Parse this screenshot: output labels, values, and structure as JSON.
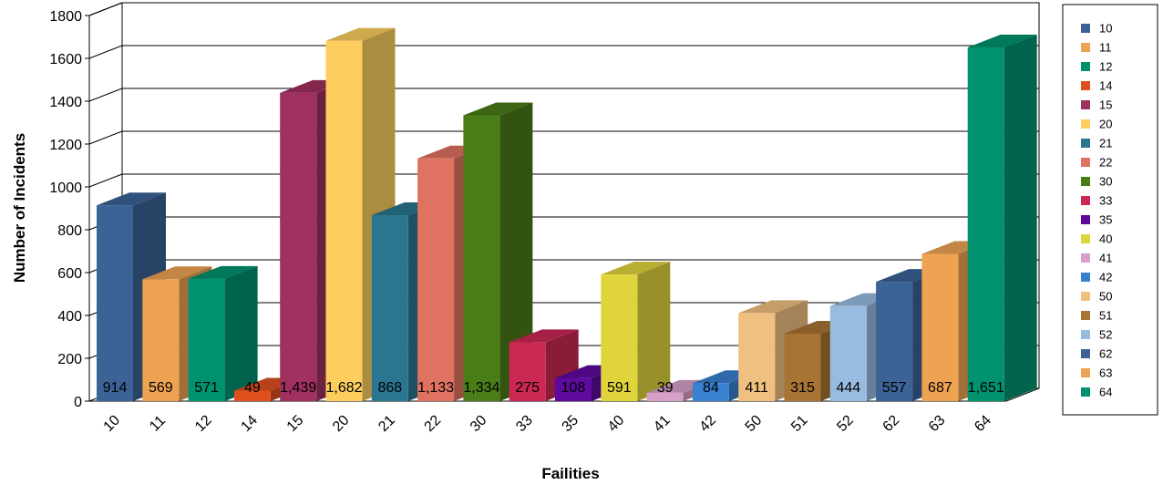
{
  "chart_data": {
    "type": "bar",
    "title": "",
    "xlabel": "Failities",
    "ylabel": "Number of Incidents",
    "ylim": [
      0,
      1800
    ],
    "y_ticks": [
      0,
      200,
      400,
      600,
      800,
      1000,
      1200,
      1400,
      1600,
      1800
    ],
    "grid": true,
    "legend_position": "right",
    "three_d": true,
    "categories": [
      "10",
      "11",
      "12",
      "14",
      "15",
      "20",
      "21",
      "22",
      "30",
      "33",
      "35",
      "40",
      "41",
      "42",
      "50",
      "51",
      "52",
      "62",
      "63",
      "64"
    ],
    "values": [
      914,
      569,
      571,
      49,
      1439,
      1682,
      868,
      1133,
      1334,
      275,
      108,
      591,
      39,
      84,
      411,
      315,
      444,
      557,
      687,
      1651
    ],
    "data_labels": [
      "914",
      "569",
      "571",
      "49",
      "1,439",
      "1,682",
      "868",
      "1,133",
      "1,334",
      "275",
      "108",
      "591",
      "39",
      "84",
      "411",
      "315",
      "444",
      "557",
      "687",
      "1,651"
    ],
    "colors": [
      "#3B6396",
      "#EEA353",
      "#00926E",
      "#E0501E",
      "#A0305F",
      "#FDCE5E",
      "#2A7590",
      "#DF7260",
      "#4A7C18",
      "#CB2854",
      "#5E0A9E",
      "#E0D43C",
      "#D8A0C8",
      "#3880D0",
      "#F0C080",
      "#A87434",
      "#98BCE0",
      "#3B6396",
      "#EEA353",
      "#00926E"
    ]
  }
}
